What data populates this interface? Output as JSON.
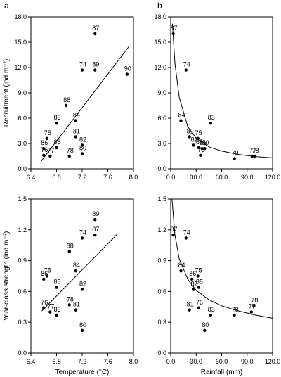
{
  "chart_data": [
    {
      "panel_label": "a",
      "type": "scatter",
      "xlabel": "",
      "ylabel": "Recruitment (ind m⁻²)",
      "xlim": [
        6.4,
        8.0
      ],
      "ylim": [
        0,
        18
      ],
      "xticks": [
        "6.4",
        "6.8",
        "7.2",
        "7.6",
        "8.0"
      ],
      "yticks": [
        "0.0",
        "3.0",
        "6.0",
        "9.0",
        "12.0",
        "15.0",
        "18.0"
      ],
      "fit": {
        "kind": "linear",
        "points": [
          [
            6.56,
            0.9
          ],
          [
            7.93,
            14.5
          ]
        ]
      },
      "points": [
        {
          "label": "87",
          "x": 7.4,
          "y": 16.0
        },
        {
          "label": "74",
          "x": 7.2,
          "y": 11.7
        },
        {
          "label": "89",
          "x": 7.4,
          "y": 11.7
        },
        {
          "label": "90",
          "x": 7.9,
          "y": 11.2
        },
        {
          "label": "88",
          "x": 6.95,
          "y": 7.5
        },
        {
          "label": "84",
          "x": 7.1,
          "y": 5.7
        },
        {
          "label": "83",
          "x": 6.8,
          "y": 5.4
        },
        {
          "label": "81",
          "x": 7.1,
          "y": 3.8
        },
        {
          "label": "75",
          "x": 6.65,
          "y": 3.6
        },
        {
          "label": "82",
          "x": 7.2,
          "y": 2.8
        },
        {
          "label": "85",
          "x": 6.8,
          "y": 2.5
        },
        {
          "label": "86",
          "x": 6.6,
          "y": 2.4
        },
        {
          "label": "80",
          "x": 7.2,
          "y": 1.8
        },
        {
          "label": "76",
          "x": 6.6,
          "y": 1.6
        },
        {
          "label": "77",
          "x": 6.7,
          "y": 1.5
        },
        {
          "label": "78",
          "x": 7.0,
          "y": 1.5
        }
      ]
    },
    {
      "panel_label": "b",
      "type": "scatter",
      "xlabel": "",
      "ylabel": "",
      "xlim": [
        0,
        120
      ],
      "ylim": [
        0,
        18
      ],
      "xticks": [
        "0.0",
        "30.0",
        "60.0",
        "90.0",
        "120.0"
      ],
      "yticks": [
        "0.0",
        "3.0",
        "6.0",
        "9.0",
        "12.0",
        "15.0",
        "18.0"
      ],
      "fit": {
        "kind": "curve",
        "points": [
          [
            2,
            17.2
          ],
          [
            5,
            12.5
          ],
          [
            10,
            8.5
          ],
          [
            20,
            5.0
          ],
          [
            30,
            3.6
          ],
          [
            45,
            2.6
          ],
          [
            60,
            2.1
          ],
          [
            80,
            1.7
          ],
          [
            100,
            1.45
          ],
          [
            120,
            1.3
          ]
        ]
      },
      "points": [
        {
          "label": "87",
          "x": 3,
          "y": 16.0
        },
        {
          "label": "74",
          "x": 18,
          "y": 11.7
        },
        {
          "label": "84",
          "x": 12,
          "y": 5.7
        },
        {
          "label": "83",
          "x": 47,
          "y": 5.4
        },
        {
          "label": "81",
          "x": 22,
          "y": 3.8
        },
        {
          "label": "75",
          "x": 32,
          "y": 3.6
        },
        {
          "label": "82",
          "x": 27,
          "y": 2.8
        },
        {
          "label": "85",
          "x": 33,
          "y": 2.5
        },
        {
          "label": "86",
          "x": 37,
          "y": 2.4
        },
        {
          "label": "80",
          "x": 40,
          "y": 2.4
        },
        {
          "label": "76",
          "x": 35,
          "y": 1.6
        },
        {
          "label": "79",
          "x": 75,
          "y": 1.2
        },
        {
          "label": "77",
          "x": 96,
          "y": 1.5
        },
        {
          "label": "78",
          "x": 99,
          "y": 1.5
        }
      ]
    },
    {
      "panel_label": "",
      "type": "scatter",
      "xlabel": "Temperature (°C)",
      "ylabel": "Year-class strength (ind m⁻²)",
      "xlim": [
        6.4,
        8.0
      ],
      "ylim": [
        0,
        1.5
      ],
      "xticks": [
        "6.4",
        "6.8",
        "7.2",
        "7.6",
        "8.0"
      ],
      "yticks": [
        "0.0",
        "0.3",
        "0.6",
        "0.9",
        "1.2",
        "1.5"
      ],
      "fit": {
        "kind": "linear",
        "points": [
          [
            6.57,
            0.41
          ],
          [
            7.75,
            1.16
          ]
        ]
      },
      "points": [
        {
          "label": "89",
          "x": 7.4,
          "y": 1.3
        },
        {
          "label": "74",
          "x": 7.2,
          "y": 1.12
        },
        {
          "label": "87",
          "x": 7.4,
          "y": 1.15
        },
        {
          "label": "88",
          "x": 7.0,
          "y": 0.99
        },
        {
          "label": "84",
          "x": 7.1,
          "y": 0.8
        },
        {
          "label": "75",
          "x": 6.65,
          "y": 0.75
        },
        {
          "label": "86",
          "x": 6.6,
          "y": 0.72
        },
        {
          "label": "85",
          "x": 6.8,
          "y": 0.64
        },
        {
          "label": "82",
          "x": 7.2,
          "y": 0.62
        },
        {
          "label": "76",
          "x": 6.6,
          "y": 0.44
        },
        {
          "label": "78",
          "x": 7.0,
          "y": 0.47
        },
        {
          "label": "81",
          "x": 7.1,
          "y": 0.42
        },
        {
          "label": "77",
          "x": 6.7,
          "y": 0.4
        },
        {
          "label": "83",
          "x": 6.8,
          "y": 0.37
        },
        {
          "label": "80",
          "x": 7.2,
          "y": 0.22
        }
      ]
    },
    {
      "panel_label": "",
      "type": "scatter",
      "xlabel": "Rainfall (mm)",
      "ylabel": "",
      "xlim": [
        0,
        120
      ],
      "ylim": [
        0,
        1.5
      ],
      "xticks": [
        "0.0",
        "30.0",
        "60.0",
        "90.0",
        "120.0"
      ],
      "yticks": [
        "0.0",
        "0.3",
        "0.6",
        "0.9",
        "1.2",
        "1.5"
      ],
      "fit": {
        "kind": "curve",
        "points": [
          [
            1.5,
            1.5
          ],
          [
            5,
            1.15
          ],
          [
            10,
            0.92
          ],
          [
            20,
            0.72
          ],
          [
            30,
            0.61
          ],
          [
            45,
            0.52
          ],
          [
            60,
            0.46
          ],
          [
            80,
            0.41
          ],
          [
            100,
            0.37
          ],
          [
            120,
            0.34
          ]
        ]
      },
      "points": [
        {
          "label": "87",
          "x": 3,
          "y": 1.15
        },
        {
          "label": "74",
          "x": 18,
          "y": 1.12
        },
        {
          "label": "84",
          "x": 12,
          "y": 0.8
        },
        {
          "label": "75",
          "x": 32,
          "y": 0.75
        },
        {
          "label": "86",
          "x": 25,
          "y": 0.72
        },
        {
          "label": "85",
          "x": 33,
          "y": 0.64
        },
        {
          "label": "82",
          "x": 27,
          "y": 0.62
        },
        {
          "label": "81",
          "x": 22,
          "y": 0.42
        },
        {
          "label": "76",
          "x": 33,
          "y": 0.44
        },
        {
          "label": "83",
          "x": 47,
          "y": 0.37
        },
        {
          "label": "79",
          "x": 75,
          "y": 0.37
        },
        {
          "label": "78",
          "x": 98,
          "y": 0.46
        },
        {
          "label": "77",
          "x": 95,
          "y": 0.4
        },
        {
          "label": "80",
          "x": 40,
          "y": 0.22
        }
      ]
    }
  ]
}
